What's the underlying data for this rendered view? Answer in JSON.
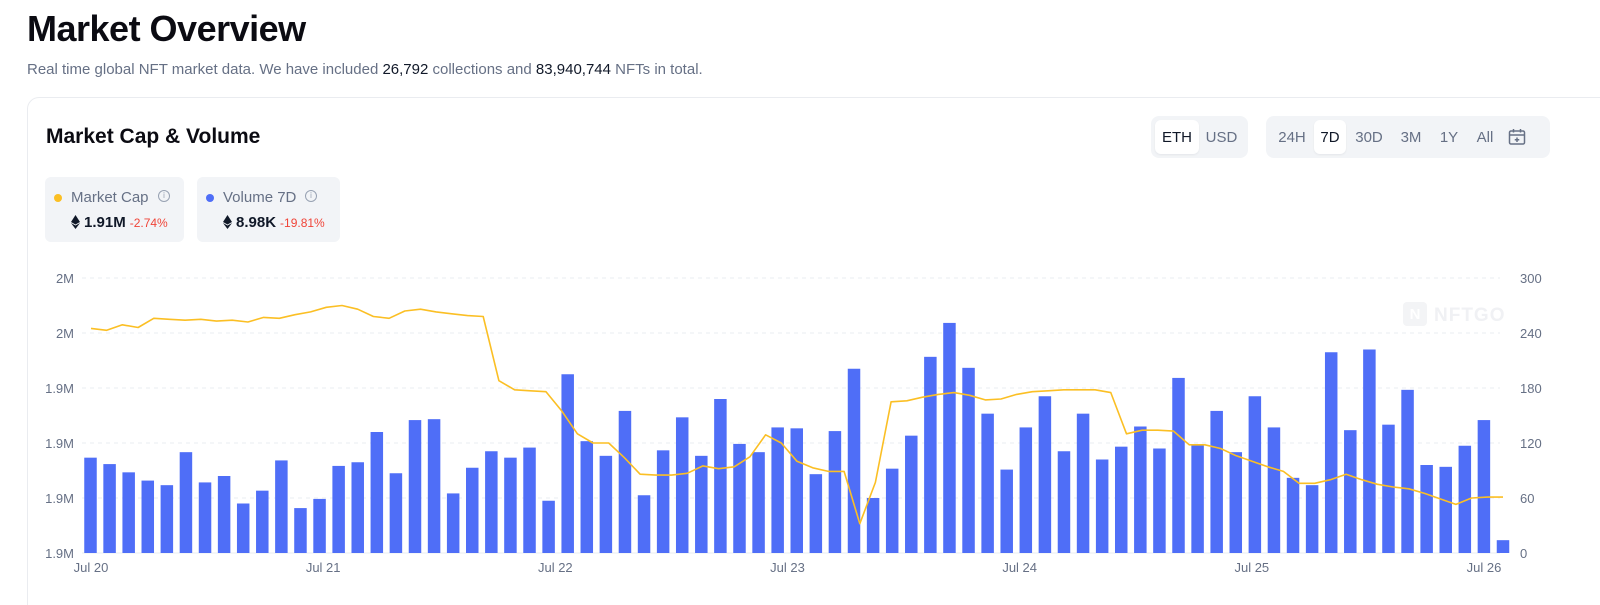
{
  "page": {
    "title": "Market Overview",
    "subtitle_prefix": "Real time global NFT market data. We have included ",
    "collections_count": "26,792",
    "subtitle_mid": " collections and ",
    "nfts_count": "83,940,744",
    "subtitle_suffix": " NFTs in total."
  },
  "card": {
    "title": "Market Cap & Volume",
    "currency_options": [
      "ETH",
      "USD"
    ],
    "currency_selected": "ETH",
    "range_options": [
      "24H",
      "7D",
      "30D",
      "3M",
      "1Y",
      "All"
    ],
    "range_selected": "7D"
  },
  "stats": {
    "market_cap": {
      "label": "Market Cap",
      "value": "1.91M",
      "change": "-2.74%",
      "color": "#fbbf24"
    },
    "volume": {
      "label": "Volume 7D",
      "value": "8.98K",
      "change": "-19.81%",
      "color": "#4f6ef7"
    }
  },
  "watermark": "NFTGO",
  "icons": {
    "eth": "ethereum-icon",
    "info": "info-icon",
    "calendar": "calendar-icon"
  },
  "colors": {
    "bar": "#4f6ef7",
    "line": "#fbbf24",
    "negative": "#f04438"
  },
  "chart_data": {
    "type": "bar+line",
    "x_labels": [
      "Jul 20",
      "Jul 21",
      "Jul 22",
      "Jul 23",
      "Jul 24",
      "Jul 25",
      "Jul 26"
    ],
    "y_left_ticks": [
      "2M",
      "2M",
      "1.9M",
      "1.9M",
      "1.9M",
      "1.9M"
    ],
    "y_right_ticks": [
      300,
      240,
      180,
      120,
      60,
      0
    ],
    "y_right_lim": [
      0,
      300
    ],
    "series": [
      {
        "name": "Volume 7D",
        "type": "bar",
        "axis": "right",
        "values": [
          104,
          97,
          88,
          79,
          74,
          110,
          77,
          84,
          54,
          68,
          101,
          49,
          59,
          95,
          99,
          132,
          87,
          145,
          146,
          65,
          93,
          111,
          104,
          115,
          57,
          195,
          122,
          106,
          155,
          63,
          112,
          148,
          106,
          168,
          119,
          110,
          137,
          136,
          86,
          133,
          201,
          60,
          92,
          128,
          214,
          251,
          202,
          152,
          91,
          137,
          171,
          111,
          152,
          102,
          116,
          138,
          114,
          191,
          118,
          155,
          110,
          171,
          137,
          82,
          74,
          219,
          134,
          222,
          140,
          178,
          96,
          94,
          117,
          145,
          14
        ],
        "unit": "ETH"
      },
      {
        "name": "Market Cap",
        "type": "line",
        "axis": "left",
        "values_right_scale": [
          245,
          243,
          249,
          246,
          256,
          255,
          254,
          255,
          253,
          254,
          252,
          257,
          256,
          260,
          263,
          268,
          270,
          266,
          258,
          256,
          264,
          266,
          263,
          261,
          259,
          258,
          188,
          178,
          177,
          176,
          155,
          130,
          120,
          120,
          104,
          86,
          85,
          85,
          87,
          95,
          92,
          94,
          105,
          129,
          120,
          100,
          93,
          89,
          89,
          32,
          77,
          165,
          166,
          170,
          173,
          175,
          172,
          167,
          168,
          173,
          176,
          177,
          178,
          178,
          178,
          175,
          130,
          134,
          134,
          133,
          118,
          118,
          114,
          106,
          100,
          94,
          89,
          76,
          76,
          80,
          86,
          80,
          75,
          72,
          70,
          65,
          59,
          53,
          60,
          61,
          61
        ],
        "unit": "ETH"
      }
    ]
  }
}
